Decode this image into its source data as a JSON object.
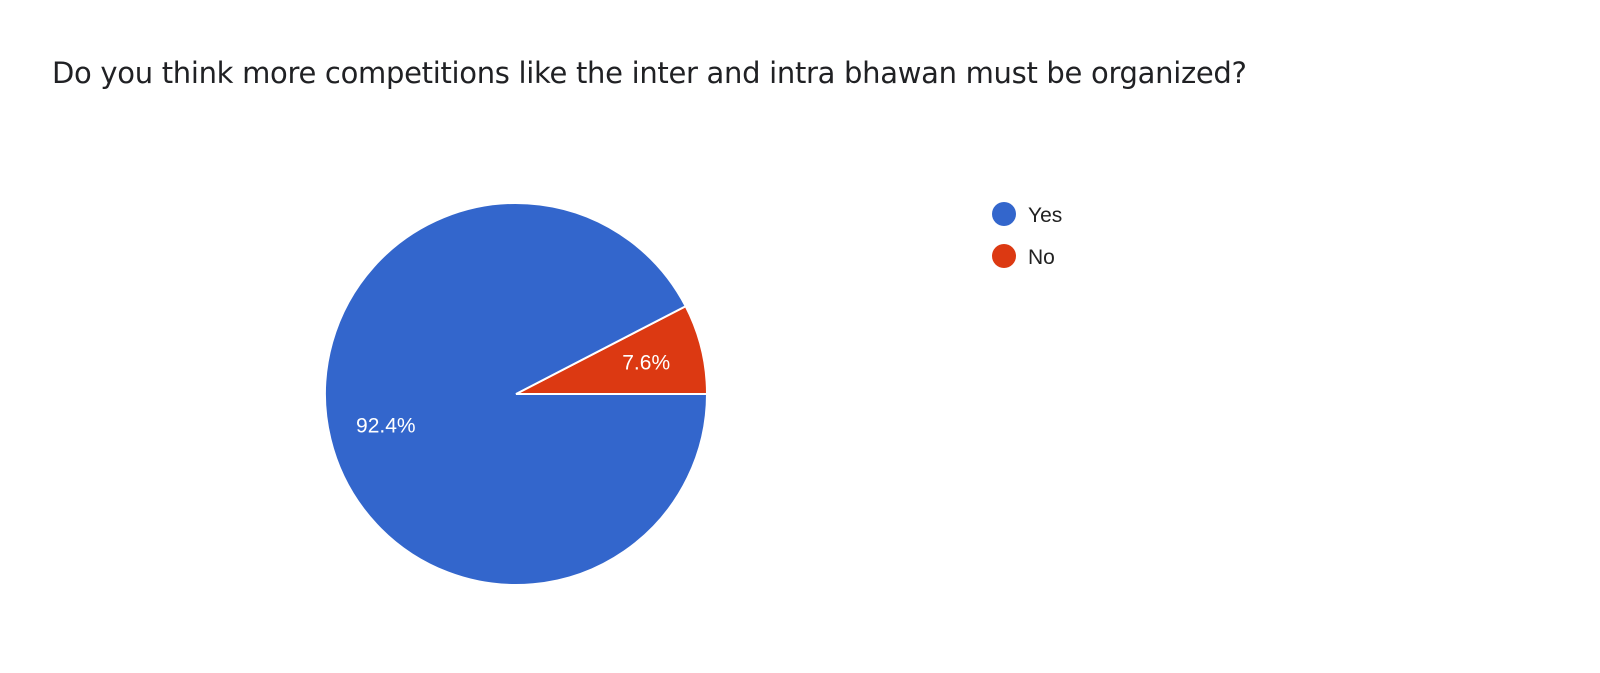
{
  "chart_data": {
    "type": "pie",
    "title": "Do you think more competitions like the inter and intra bhawan must be organized?",
    "categories": [
      "Yes",
      "No"
    ],
    "values": [
      92.4,
      7.6
    ],
    "labels": [
      "92.4%",
      "7.6%"
    ],
    "colors": [
      "#3366cc",
      "#dc3912"
    ],
    "legend": {
      "position": "right",
      "entries": [
        "Yes",
        "No"
      ]
    }
  }
}
